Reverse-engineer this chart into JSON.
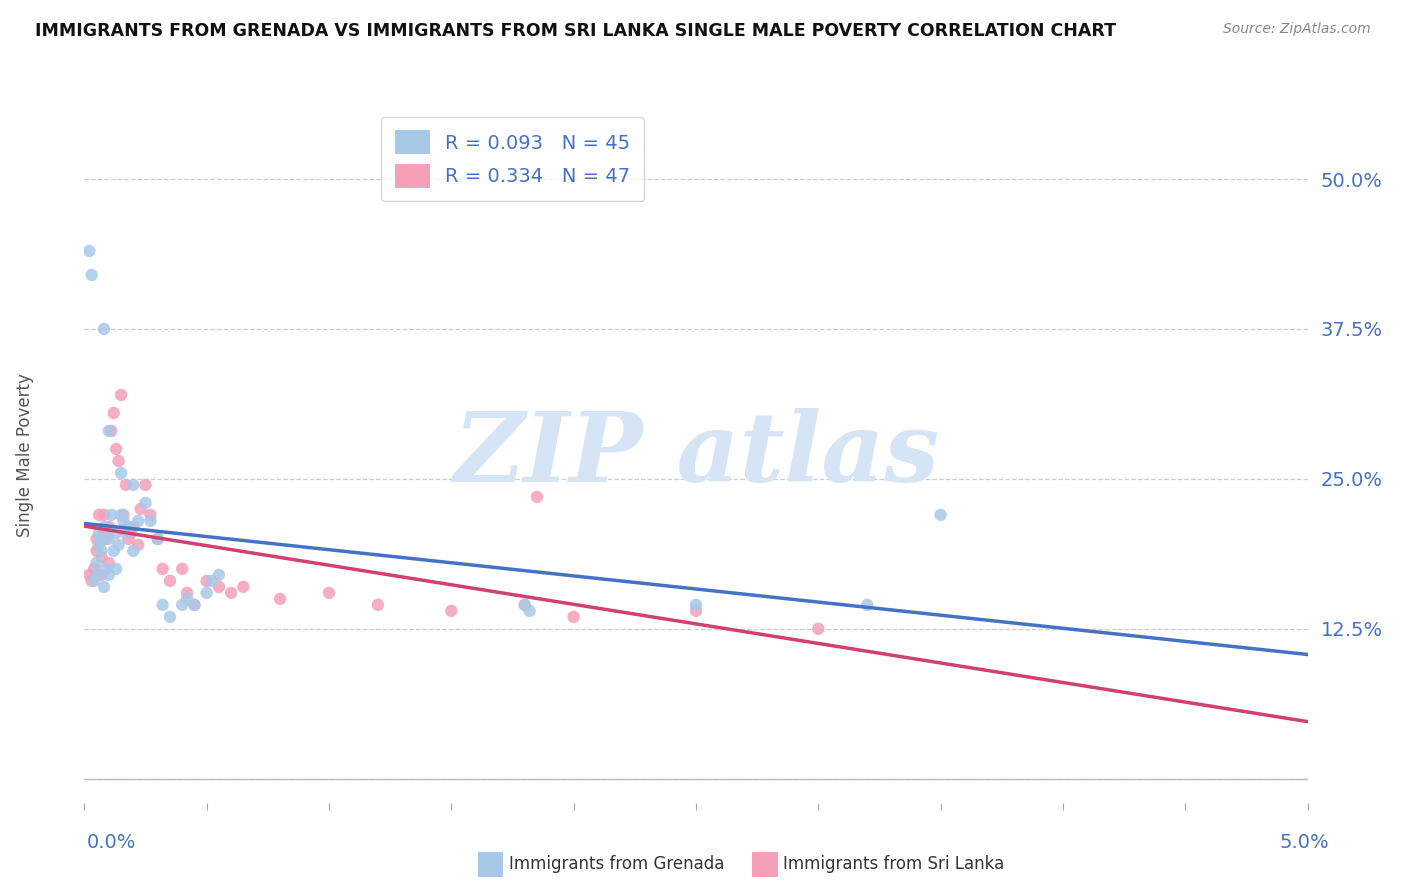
{
  "title": "IMMIGRANTS FROM GRENADA VS IMMIGRANTS FROM SRI LANKA SINGLE MALE POVERTY CORRELATION CHART",
  "source": "Source: ZipAtlas.com",
  "ylabel": "Single Male Poverty",
  "xlim": [
    0.0,
    5.0
  ],
  "ylim": [
    -2.0,
    56.0
  ],
  "yticks": [
    0.0,
    12.5,
    25.0,
    37.5,
    50.0
  ],
  "ytick_labels": [
    "",
    "12.5%",
    "25.0%",
    "37.5%",
    "50.0%"
  ],
  "grenada_R": 0.093,
  "grenada_N": 45,
  "srilanka_R": 0.334,
  "srilanka_N": 47,
  "grenada_color": "#a8c8e8",
  "srilanka_color": "#f4a0b8",
  "grenada_line_color": "#4472c4",
  "srilanka_line_color": "#d04070",
  "background_color": "#ffffff",
  "watermark_text": "ZIP atlas",
  "watermark_color": "#d5e5f5",
  "grenada_x": [
    0.02,
    0.03,
    0.04,
    0.05,
    0.05,
    0.06,
    0.06,
    0.07,
    0.07,
    0.08,
    0.08,
    0.09,
    0.1,
    0.1,
    0.11,
    0.12,
    0.13,
    0.13,
    0.14,
    0.15,
    0.16,
    0.17,
    0.18,
    0.2,
    0.22,
    0.25,
    0.27,
    0.3,
    0.32,
    0.35,
    0.4,
    0.42,
    0.45,
    0.5,
    0.52,
    0.55,
    1.8,
    1.82,
    2.5,
    3.2,
    0.08,
    0.1,
    0.15,
    0.2,
    3.5
  ],
  "grenada_y": [
    44.0,
    42.0,
    16.5,
    17.0,
    18.0,
    19.5,
    20.5,
    19.0,
    20.0,
    21.0,
    16.0,
    17.5,
    17.0,
    20.0,
    22.0,
    19.0,
    20.5,
    17.5,
    19.5,
    22.0,
    21.5,
    20.5,
    21.0,
    19.0,
    21.5,
    23.0,
    21.5,
    20.0,
    14.5,
    13.5,
    14.5,
    15.0,
    14.5,
    15.5,
    16.5,
    17.0,
    14.5,
    14.0,
    14.5,
    14.5,
    37.5,
    29.0,
    25.5,
    24.5,
    22.0
  ],
  "srilanka_x": [
    0.02,
    0.03,
    0.04,
    0.05,
    0.05,
    0.06,
    0.06,
    0.07,
    0.07,
    0.08,
    0.08,
    0.09,
    0.1,
    0.1,
    0.11,
    0.12,
    0.13,
    0.14,
    0.15,
    0.16,
    0.17,
    0.18,
    0.19,
    0.2,
    0.22,
    0.23,
    0.25,
    0.27,
    0.3,
    0.32,
    0.35,
    0.4,
    0.42,
    0.45,
    0.5,
    0.55,
    0.6,
    0.65,
    0.8,
    1.0,
    1.2,
    1.5,
    1.8,
    2.0,
    2.5,
    3.0,
    1.85
  ],
  "srilanka_y": [
    17.0,
    16.5,
    17.5,
    19.0,
    20.0,
    19.5,
    22.0,
    18.5,
    17.0,
    20.5,
    22.0,
    20.0,
    18.0,
    21.0,
    29.0,
    30.5,
    27.5,
    26.5,
    32.0,
    22.0,
    24.5,
    20.0,
    20.5,
    21.0,
    19.5,
    22.5,
    24.5,
    22.0,
    20.0,
    17.5,
    16.5,
    17.5,
    15.5,
    14.5,
    16.5,
    16.0,
    15.5,
    16.0,
    15.0,
    15.5,
    14.5,
    14.0,
    14.5,
    13.5,
    14.0,
    12.5,
    23.5
  ]
}
